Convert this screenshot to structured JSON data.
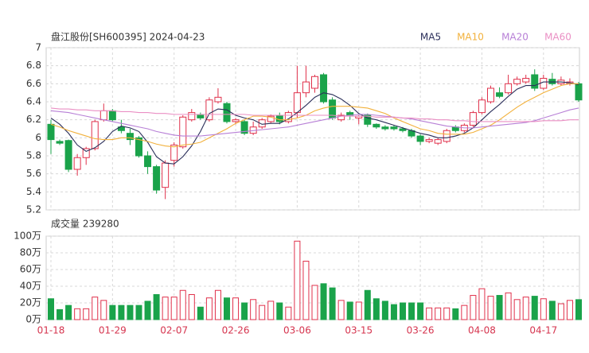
{
  "chart_data": [
    {
      "type": "candlestick",
      "title": "盘江股份[SH600395] 2024-04-23",
      "categories": [
        "01-18",
        null,
        null,
        null,
        null,
        null,
        null,
        "01-29",
        null,
        null,
        null,
        null,
        null,
        null,
        "02-07",
        null,
        null,
        null,
        null,
        null,
        null,
        "02-26",
        null,
        null,
        null,
        null,
        null,
        null,
        "03-06",
        null,
        null,
        null,
        null,
        null,
        null,
        "03-15",
        null,
        null,
        null,
        null,
        null,
        null,
        "03-26",
        null,
        null,
        null,
        null,
        null,
        null,
        "04-08",
        null,
        null,
        null,
        null,
        null,
        null,
        "04-17",
        null,
        null,
        null,
        null
      ],
      "open": [
        6.15,
        5.96,
        5.97,
        5.65,
        5.78,
        5.88,
        6.2,
        6.3,
        6.12,
        6.05,
        6.0,
        5.8,
        5.68,
        5.45,
        5.75,
        5.9,
        6.2,
        6.25,
        6.2,
        6.4,
        6.38,
        6.18,
        6.18,
        6.05,
        6.12,
        6.18,
        6.25,
        6.18,
        6.28,
        6.5,
        6.55,
        6.7,
        6.42,
        6.2,
        6.28,
        6.22,
        6.25,
        6.15,
        6.12,
        6.12,
        6.1,
        6.08,
        6.02,
        5.96,
        5.94,
        5.96,
        6.12,
        6.08,
        6.14,
        6.28,
        6.4,
        6.5,
        6.5,
        6.6,
        6.62,
        6.7,
        6.55,
        6.65,
        6.6,
        6.6,
        6.6
      ],
      "high": [
        6.2,
        5.98,
        5.98,
        5.82,
        5.9,
        6.2,
        6.38,
        6.32,
        6.2,
        6.1,
        6.02,
        5.85,
        5.7,
        5.75,
        5.95,
        6.25,
        6.32,
        6.28,
        6.45,
        6.55,
        6.4,
        6.22,
        6.2,
        6.18,
        6.22,
        6.26,
        6.28,
        6.3,
        6.8,
        6.8,
        6.7,
        6.72,
        6.45,
        6.28,
        6.3,
        6.25,
        6.27,
        6.16,
        6.14,
        6.14,
        6.12,
        6.1,
        6.04,
        6.0,
        6.0,
        6.1,
        6.14,
        6.16,
        6.3,
        6.45,
        6.58,
        6.56,
        6.7,
        6.68,
        6.7,
        6.76,
        6.7,
        6.72,
        6.68,
        6.66,
        6.62
      ],
      "low": [
        5.82,
        5.92,
        5.62,
        5.58,
        5.7,
        5.86,
        6.18,
        6.18,
        6.05,
        5.92,
        5.78,
        5.6,
        5.38,
        5.32,
        5.68,
        5.88,
        6.18,
        6.2,
        6.18,
        6.38,
        6.16,
        6.15,
        6.03,
        6.03,
        6.1,
        6.16,
        6.15,
        6.16,
        6.22,
        6.45,
        6.5,
        6.38,
        6.2,
        6.18,
        6.2,
        6.15,
        6.12,
        6.1,
        6.08,
        6.08,
        6.06,
        6.0,
        5.92,
        5.94,
        5.92,
        5.94,
        6.06,
        6.06,
        6.12,
        6.26,
        6.38,
        6.44,
        6.48,
        6.58,
        6.6,
        6.52,
        6.53,
        6.58,
        6.58,
        6.58,
        6.4
      ],
      "close": [
        5.98,
        5.94,
        5.65,
        5.78,
        5.88,
        6.18,
        6.3,
        6.2,
        6.08,
        5.98,
        5.8,
        5.68,
        5.42,
        5.72,
        5.92,
        6.23,
        6.28,
        6.22,
        6.42,
        6.45,
        6.18,
        6.2,
        6.05,
        6.12,
        6.2,
        6.24,
        6.18,
        6.28,
        6.5,
        6.62,
        6.68,
        6.4,
        6.22,
        6.25,
        6.25,
        6.24,
        6.15,
        6.12,
        6.1,
        6.1,
        6.08,
        6.02,
        5.96,
        5.98,
        5.98,
        6.08,
        6.08,
        6.14,
        6.28,
        6.42,
        6.55,
        6.46,
        6.6,
        6.65,
        6.66,
        6.55,
        6.66,
        6.6,
        6.64,
        6.62,
        6.42
      ],
      "up_color": "#e0314b",
      "down_color": "#1aa34a",
      "series": [
        {
          "name": "MA5",
          "color": "#2b2f5a",
          "values": [
            6.22,
            6.15,
            6.05,
            5.92,
            5.85,
            5.89,
            5.96,
            6.07,
            6.13,
            6.11,
            6.07,
            5.95,
            5.79,
            5.72,
            5.71,
            5.79,
            5.91,
            6.07,
            6.27,
            6.32,
            6.31,
            6.25,
            6.22,
            6.2,
            6.15,
            6.16,
            6.16,
            6.21,
            6.28,
            6.36,
            6.45,
            6.5,
            6.48,
            6.43,
            6.36,
            6.27,
            6.22,
            6.2,
            6.17,
            6.14,
            6.11,
            6.08,
            6.05,
            6.03,
            6.0,
            6.0,
            6.02,
            6.05,
            6.11,
            6.2,
            6.29,
            6.37,
            6.46,
            6.54,
            6.58,
            6.58,
            6.62,
            6.62,
            6.62,
            6.61,
            6.59
          ]
        },
        {
          "name": "MA10",
          "color": "#f2b13c",
          "values": [
            6.15,
            6.12,
            6.08,
            6.05,
            6.02,
            5.99,
            5.98,
            5.98,
            6.0,
            6.0,
            5.98,
            5.96,
            5.93,
            5.91,
            5.9,
            5.92,
            5.93,
            5.95,
            6.0,
            6.05,
            6.1,
            6.16,
            6.2,
            6.24,
            6.24,
            6.23,
            6.2,
            6.2,
            6.22,
            6.25,
            6.3,
            6.33,
            6.35,
            6.35,
            6.35,
            6.34,
            6.33,
            6.3,
            6.27,
            6.22,
            6.18,
            6.14,
            6.1,
            6.08,
            6.05,
            6.04,
            6.04,
            6.04,
            6.06,
            6.1,
            6.14,
            6.2,
            6.27,
            6.34,
            6.4,
            6.45,
            6.5,
            6.54,
            6.58,
            6.6,
            6.6
          ]
        },
        {
          "name": "MA20",
          "color": "#b77fd6",
          "values": [
            6.3,
            6.29,
            6.28,
            6.26,
            6.24,
            6.22,
            6.2,
            6.18,
            6.16,
            6.14,
            6.12,
            6.1,
            6.07,
            6.05,
            6.03,
            6.02,
            6.02,
            6.02,
            6.03,
            6.04,
            6.05,
            6.06,
            6.07,
            6.08,
            6.09,
            6.1,
            6.11,
            6.12,
            6.14,
            6.16,
            6.18,
            6.2,
            6.22,
            6.24,
            6.25,
            6.26,
            6.26,
            6.25,
            6.24,
            6.23,
            6.22,
            6.21,
            6.19,
            6.17,
            6.15,
            6.13,
            6.12,
            6.11,
            6.11,
            6.12,
            6.13,
            6.14,
            6.15,
            6.16,
            6.17,
            6.19,
            6.22,
            6.25,
            6.28,
            6.31,
            6.33
          ]
        },
        {
          "name": "MA60",
          "color": "#ea8fc4",
          "values": [
            6.33,
            6.32,
            6.32,
            6.31,
            6.31,
            6.3,
            6.3,
            6.3,
            6.29,
            6.29,
            6.28,
            6.28,
            6.27,
            6.27,
            6.26,
            6.26,
            6.26,
            6.26,
            6.26,
            6.26,
            6.26,
            6.26,
            6.26,
            6.25,
            6.25,
            6.25,
            6.25,
            6.25,
            6.25,
            6.25,
            6.25,
            6.25,
            6.25,
            6.24,
            6.24,
            6.24,
            6.24,
            6.23,
            6.23,
            6.23,
            6.22,
            6.22,
            6.21,
            6.21,
            6.2,
            6.2,
            6.19,
            6.19,
            6.18,
            6.18,
            6.18,
            6.18,
            6.18,
            6.18,
            6.18,
            6.18,
            6.19,
            6.19,
            6.19,
            6.2,
            6.2
          ]
        }
      ],
      "ylim": [
        5.2,
        7
      ],
      "yticks": [
        5.2,
        5.4,
        5.6,
        5.8,
        6,
        6.2,
        6.4,
        6.6,
        6.8,
        7
      ],
      "grid": true
    },
    {
      "type": "bar",
      "title": "成交量 239280",
      "values": [
        25,
        12,
        17,
        13,
        13,
        27,
        23,
        17,
        17,
        17,
        17,
        22,
        30,
        27,
        27,
        35,
        30,
        15,
        26,
        35,
        26,
        26,
        20,
        24,
        17,
        22,
        20,
        15,
        94,
        70,
        41,
        43,
        38,
        23,
        21,
        21,
        35,
        25,
        22,
        18,
        20,
        20,
        20,
        14,
        14,
        14,
        13,
        17,
        29,
        37,
        28,
        29,
        32,
        24,
        27,
        28,
        25,
        22,
        19,
        23,
        23.928
      ],
      "ylim": [
        0,
        100
      ],
      "yticks": [
        {
          "value": 0,
          "label": "0万"
        },
        {
          "value": 20,
          "label": "20万"
        },
        {
          "value": 40,
          "label": "40万"
        },
        {
          "value": 60,
          "label": "60万"
        },
        {
          "value": 80,
          "label": "80万"
        },
        {
          "value": 100,
          "label": "100万"
        }
      ],
      "grid": true
    }
  ]
}
